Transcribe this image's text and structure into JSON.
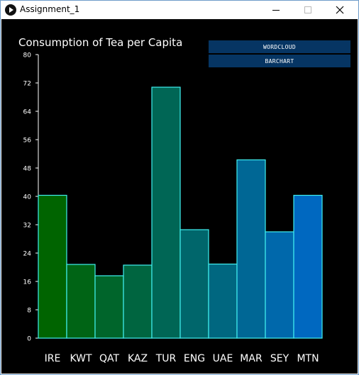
{
  "window": {
    "title": "Assignment_1"
  },
  "icons": {
    "app": "processing-play-icon",
    "minimize": "minimize-icon",
    "maximize": "maximize-icon",
    "close": "close-icon"
  },
  "toolbar": {
    "wordcloud_label": "WORDCLOUD",
    "barchart_label": "BARCHART"
  },
  "colors": {
    "background": "#000000",
    "bar_outline": "#40f0f0",
    "button_bg": "#063563",
    "bar_fill_start": "#006400",
    "bar_fill_end": "#0068c0"
  },
  "chart_data": {
    "type": "bar",
    "title": "Consumption of Tea per Capita",
    "xlabel": "",
    "ylabel": "",
    "categories": [
      "IRE",
      "KWT",
      "QAT",
      "KAZ",
      "TUR",
      "ENG",
      "UAE",
      "MAR",
      "SEY",
      "MTN"
    ],
    "values": [
      40.3,
      20.8,
      17.6,
      20.6,
      70.8,
      30.6,
      20.9,
      50.3,
      30.0,
      40.3
    ],
    "ylim": [
      0,
      80
    ],
    "yticks": [
      0,
      8,
      16,
      24,
      32,
      40,
      48,
      56,
      64,
      72,
      80
    ],
    "grid": false,
    "legend": "none"
  }
}
